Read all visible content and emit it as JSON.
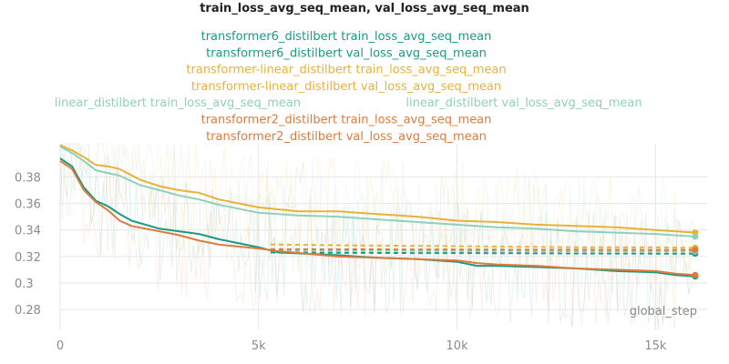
{
  "chart_data": {
    "type": "line",
    "title": "train_loss_avg_seq_mean, val_loss_avg_seq_mean",
    "xlabel": "global_step",
    "ylabel": "",
    "xlim": [
      0,
      16300
    ],
    "ylim": [
      0.265,
      0.405
    ],
    "grid": true,
    "legend_position": "top",
    "x_ticks": [
      {
        "value": 0,
        "label": "0"
      },
      {
        "value": 5000,
        "label": "5k"
      },
      {
        "value": 10000,
        "label": "10k"
      },
      {
        "value": 15000,
        "label": "15k"
      }
    ],
    "y_ticks": [
      {
        "value": 0.28,
        "label": "0.28"
      },
      {
        "value": 0.3,
        "label": "0.3"
      },
      {
        "value": 0.32,
        "label": "0.32"
      },
      {
        "value": 0.34,
        "label": "0.34"
      },
      {
        "value": 0.36,
        "label": "0.36"
      },
      {
        "value": 0.38,
        "label": "0.38"
      }
    ],
    "series": [
      {
        "name": "transformer6_distilbert train_loss_avg_seq_mean",
        "color": "#1a9a84",
        "style": "solid",
        "x": [
          0,
          300,
          600,
          900,
          1200,
          1500,
          1800,
          2500,
          3000,
          3500,
          4000,
          5000,
          5500,
          7000,
          8000,
          9000,
          10000,
          10500,
          11000,
          12000,
          13000,
          14000,
          15000,
          15500,
          16000
        ],
        "y": [
          0.394,
          0.388,
          0.372,
          0.362,
          0.358,
          0.352,
          0.347,
          0.341,
          0.339,
          0.337,
          0.333,
          0.327,
          0.323,
          0.321,
          0.319,
          0.318,
          0.316,
          0.313,
          0.313,
          0.312,
          0.311,
          0.309,
          0.308,
          0.306,
          0.305
        ]
      },
      {
        "name": "transformer6_distilbert val_loss_avg_seq_mean",
        "color": "#1a9a84",
        "style": "dashed",
        "x": [
          5300,
          7000,
          9000,
          11000,
          13000,
          15000,
          16000
        ],
        "y": [
          0.323,
          0.3228,
          0.3226,
          0.3225,
          0.3223,
          0.3222,
          0.3222
        ]
      },
      {
        "name": "transformer-linear_distilbert train_loss_avg_seq_mean",
        "color": "#e8b13a",
        "style": "solid",
        "x": [
          0,
          300,
          600,
          900,
          1200,
          1500,
          2000,
          2500,
          3000,
          3500,
          4000,
          5000,
          6000,
          7000,
          8000,
          9000,
          10000,
          11000,
          12000,
          13000,
          14000,
          15000,
          16000
        ],
        "y": [
          0.404,
          0.4,
          0.395,
          0.389,
          0.388,
          0.386,
          0.378,
          0.373,
          0.37,
          0.368,
          0.363,
          0.357,
          0.354,
          0.354,
          0.352,
          0.35,
          0.347,
          0.346,
          0.344,
          0.343,
          0.342,
          0.34,
          0.338
        ]
      },
      {
        "name": "transformer-linear_distilbert val_loss_avg_seq_mean",
        "color": "#e8b13a",
        "style": "dashed",
        "x": [
          5300,
          7000,
          9000,
          11000,
          13000,
          15000,
          16000
        ],
        "y": [
          0.329,
          0.3285,
          0.328,
          0.3275,
          0.327,
          0.3268,
          0.3265
        ]
      },
      {
        "name": "linear_distilbert train_loss_avg_seq_mean",
        "color": "#8fd0bc",
        "style": "solid",
        "x": [
          0,
          300,
          600,
          900,
          1200,
          1500,
          2000,
          2500,
          3000,
          3500,
          4000,
          5000,
          6000,
          7000,
          8000,
          9000,
          10000,
          11000,
          12000,
          13000,
          14000,
          15000,
          16000
        ],
        "y": [
          0.403,
          0.398,
          0.392,
          0.385,
          0.383,
          0.381,
          0.374,
          0.37,
          0.366,
          0.363,
          0.359,
          0.353,
          0.351,
          0.35,
          0.348,
          0.346,
          0.344,
          0.342,
          0.341,
          0.339,
          0.338,
          0.337,
          0.335
        ]
      },
      {
        "name": "linear_distilbert val_loss_avg_seq_mean",
        "color": "#8fd0bc",
        "style": "dashed",
        "x": [
          5300,
          7000,
          9000,
          11000,
          13000,
          15000,
          16000
        ],
        "y": [
          0.3245,
          0.3243,
          0.3242,
          0.3241,
          0.324,
          0.3239,
          0.3238
        ]
      },
      {
        "name": "transformer2_distilbert train_loss_avg_seq_mean",
        "color": "#de7a3c",
        "style": "solid",
        "x": [
          0,
          300,
          600,
          900,
          1200,
          1500,
          1800,
          2500,
          3000,
          3500,
          4000,
          5000,
          5500,
          7000,
          8000,
          9000,
          10000,
          10500,
          11000,
          12000,
          13000,
          14000,
          15000,
          15500,
          16000
        ],
        "y": [
          0.392,
          0.386,
          0.37,
          0.361,
          0.355,
          0.347,
          0.343,
          0.339,
          0.336,
          0.332,
          0.329,
          0.326,
          0.324,
          0.32,
          0.319,
          0.318,
          0.317,
          0.315,
          0.314,
          0.313,
          0.311,
          0.31,
          0.309,
          0.307,
          0.306
        ]
      },
      {
        "name": "transformer2_distilbert val_loss_avg_seq_mean",
        "color": "#de7a3c",
        "style": "dashed",
        "x": [
          5300,
          7000,
          9000,
          11000,
          13000,
          15000,
          16000
        ],
        "y": [
          0.3255,
          0.3254,
          0.3253,
          0.3252,
          0.3251,
          0.325,
          0.325
        ]
      }
    ],
    "legend_rows": [
      [
        0
      ],
      [
        1
      ],
      [
        2
      ],
      [
        3
      ],
      [
        4,
        5
      ],
      [
        6
      ],
      [
        7
      ]
    ]
  }
}
